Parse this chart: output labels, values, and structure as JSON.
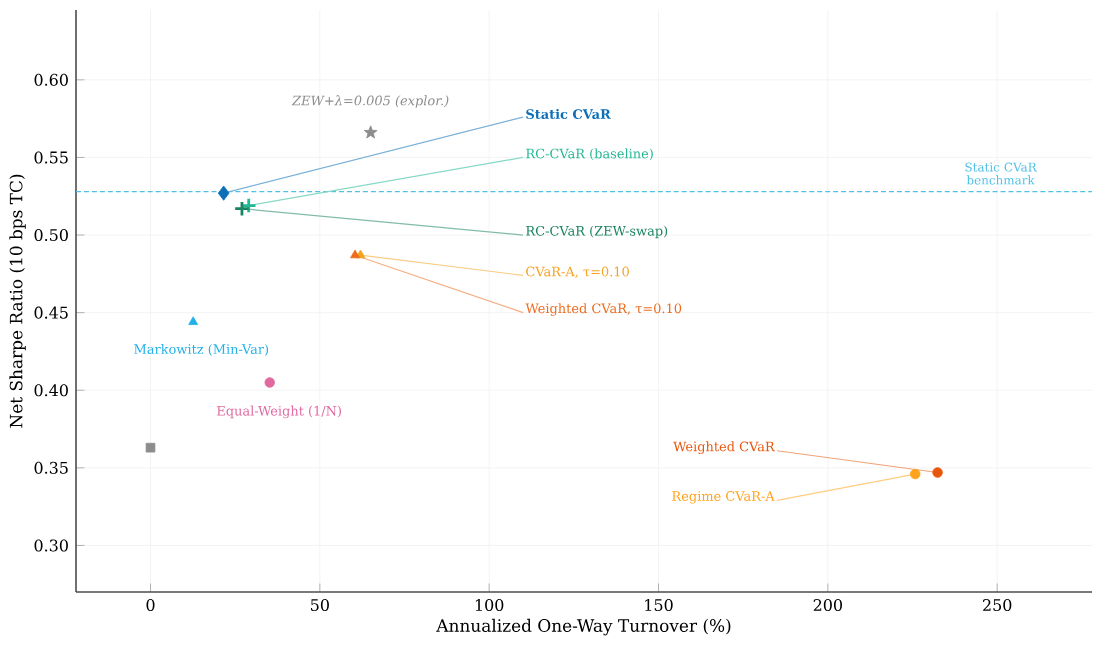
{
  "chart_data": {
    "type": "scatter",
    "xlabel": "Annualized One-Way Turnover (%)",
    "ylabel": "Net Sharpe Ratio (10 bps TC)",
    "xlim": [
      -22,
      278
    ],
    "ylim": [
      0.27,
      0.645
    ],
    "xticks": [
      0,
      50,
      100,
      150,
      200,
      250
    ],
    "yticks": [
      {
        "value": 0.3,
        "label": "0.30"
      },
      0.35,
      {
        "value": 0.4,
        "label": "0.40"
      },
      0.45,
      {
        "value": 0.5,
        "label": "0.50"
      },
      0.55,
      {
        "value": 0.6,
        "label": "0.60"
      }
    ],
    "grid": true,
    "series": [
      {
        "name": "ZEW+λ=0.005 (explor.)",
        "color": "#8c8c8c",
        "marker": "star",
        "x": [
          65
        ],
        "values": [
          0.566
        ]
      },
      {
        "name": "Static CVaR",
        "color": "#0b6fb8",
        "marker": "diamond",
        "x": [
          21.6
        ],
        "values": [
          0.527
        ]
      },
      {
        "name": "RC-CVaR (baseline)",
        "color": "#22b893",
        "marker": "cross",
        "x": [
          29
        ],
        "values": [
          0.519
        ]
      },
      {
        "name": "RC-CVaR (ZEW-swap)",
        "color": "#1a8462",
        "marker": "cross",
        "x": [
          27
        ],
        "values": [
          0.517
        ]
      },
      {
        "name": "CVaR-A, τ=0.10",
        "color": "#f5a21f",
        "marker": "triangle",
        "x": [
          62
        ],
        "values": [
          0.487
        ]
      },
      {
        "name": "Weighted CVaR, τ=0.10",
        "color": "#ee6a1c",
        "marker": "triangle",
        "x": [
          60.4
        ],
        "values": [
          0.487
        ]
      },
      {
        "name": "Markowitz (Min-Var)",
        "color": "#22b0ea",
        "marker": "triangle",
        "x": [
          12.6
        ],
        "values": [
          0.444
        ]
      },
      {
        "name": "Equal-Weight (1/N)",
        "color": "#e06aa0",
        "marker": "circle",
        "x": [
          35.2
        ],
        "values": [
          0.405
        ]
      },
      {
        "name": null,
        "color": "#8c8c8c",
        "marker": "square",
        "x": [
          0
        ],
        "values": [
          0.363
        ]
      },
      {
        "name": "Weighted CVaR",
        "color": "#e8560c",
        "marker": "circle",
        "x": [
          232.4
        ],
        "values": [
          0.347
        ]
      },
      {
        "name": "Regime CVaR-A",
        "color": "#ffa21c",
        "marker": "circle",
        "x": [
          225.8
        ],
        "values": [
          0.346
        ]
      }
    ],
    "ref_lines": [
      {
        "axis": "y",
        "value": 0.528,
        "label": "Static CVaR benchmark",
        "color": "#4fc0e6",
        "line_style": "dashed"
      }
    ]
  }
}
